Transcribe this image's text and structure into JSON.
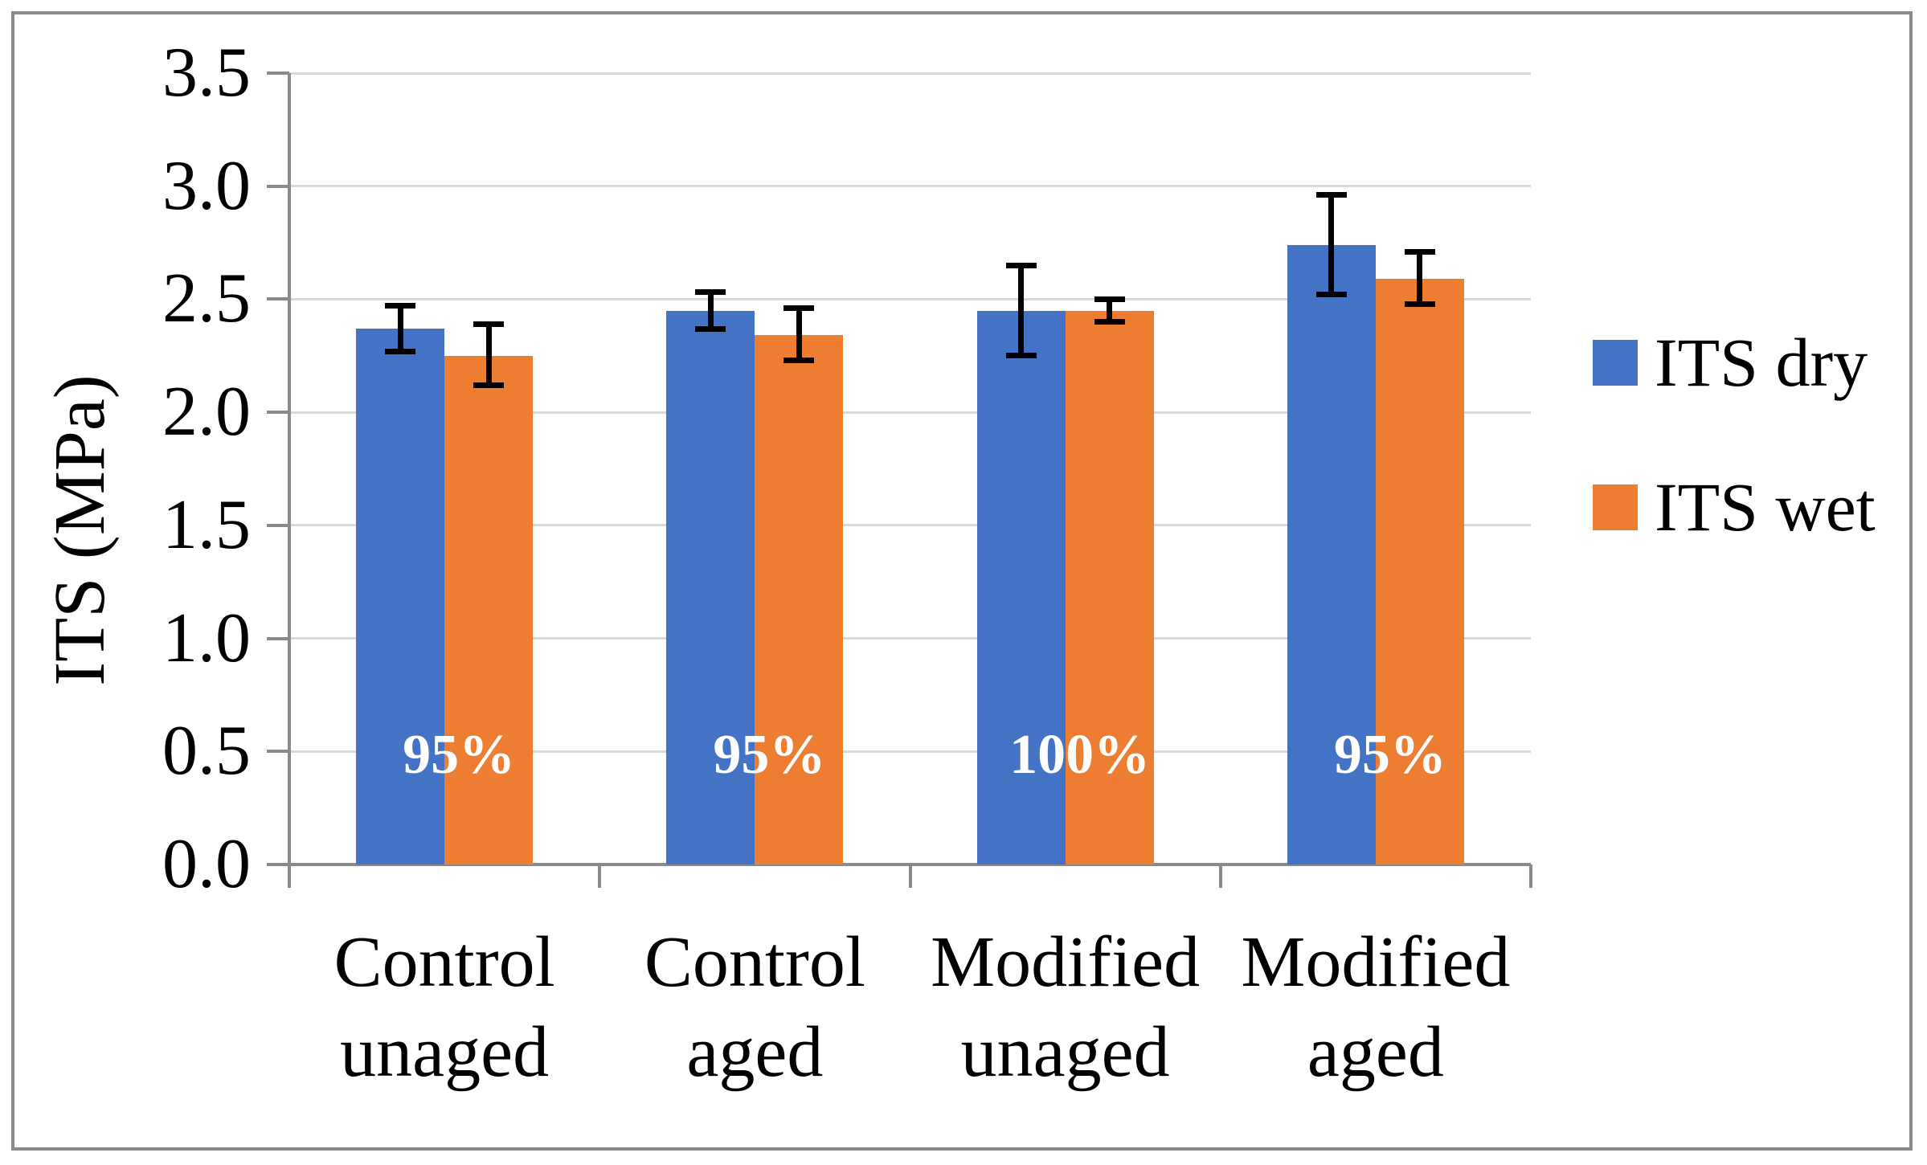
{
  "chart_data": {
    "type": "bar",
    "title": "",
    "xlabel": "",
    "ylabel": "ITS (MPa)",
    "ylim": [
      0,
      3.5
    ],
    "ytick_step": 0.5,
    "yticks": [
      0,
      0.5,
      1.0,
      1.5,
      2.0,
      2.5,
      3.0,
      3.5
    ],
    "ytick_labels": [
      "0.0",
      "0.5",
      "1.0",
      "1.5",
      "2.0",
      "2.5",
      "3.0",
      "3.5"
    ],
    "categories": [
      "Control unaged",
      "Control aged",
      "Modified unaged",
      "Modified aged"
    ],
    "category_lines": [
      [
        "Control",
        "unaged"
      ],
      [
        "Control",
        "aged"
      ],
      [
        "Modified",
        "unaged"
      ],
      [
        "Modified",
        "aged"
      ]
    ],
    "series": [
      {
        "name": "ITS dry",
        "color": "#4472C4",
        "values": [
          2.37,
          2.45,
          2.45,
          2.74
        ],
        "err_up": [
          0.1,
          0.08,
          0.2,
          0.22
        ],
        "err_down": [
          0.1,
          0.08,
          0.2,
          0.22
        ]
      },
      {
        "name": "ITS wet",
        "color": "#ED7D31",
        "values": [
          2.25,
          2.34,
          2.45,
          2.59
        ],
        "err_up": [
          0.14,
          0.12,
          0.05,
          0.12
        ],
        "err_down": [
          0.13,
          0.11,
          0.05,
          0.11
        ]
      }
    ],
    "bar_group_labels": [
      "95%",
      "95%",
      "100%",
      "95%"
    ],
    "legend_position": "right",
    "grid": true
  },
  "colors": {
    "axis": "#8A8A8A",
    "gridline": "#D9D9D9",
    "border": "#8A8A8A",
    "error_bar": "#000000",
    "group_label_text": "#FFFFFF",
    "background": "#FFFFFF",
    "series_dry": "#4472C4",
    "series_wet": "#ED7D31"
  }
}
